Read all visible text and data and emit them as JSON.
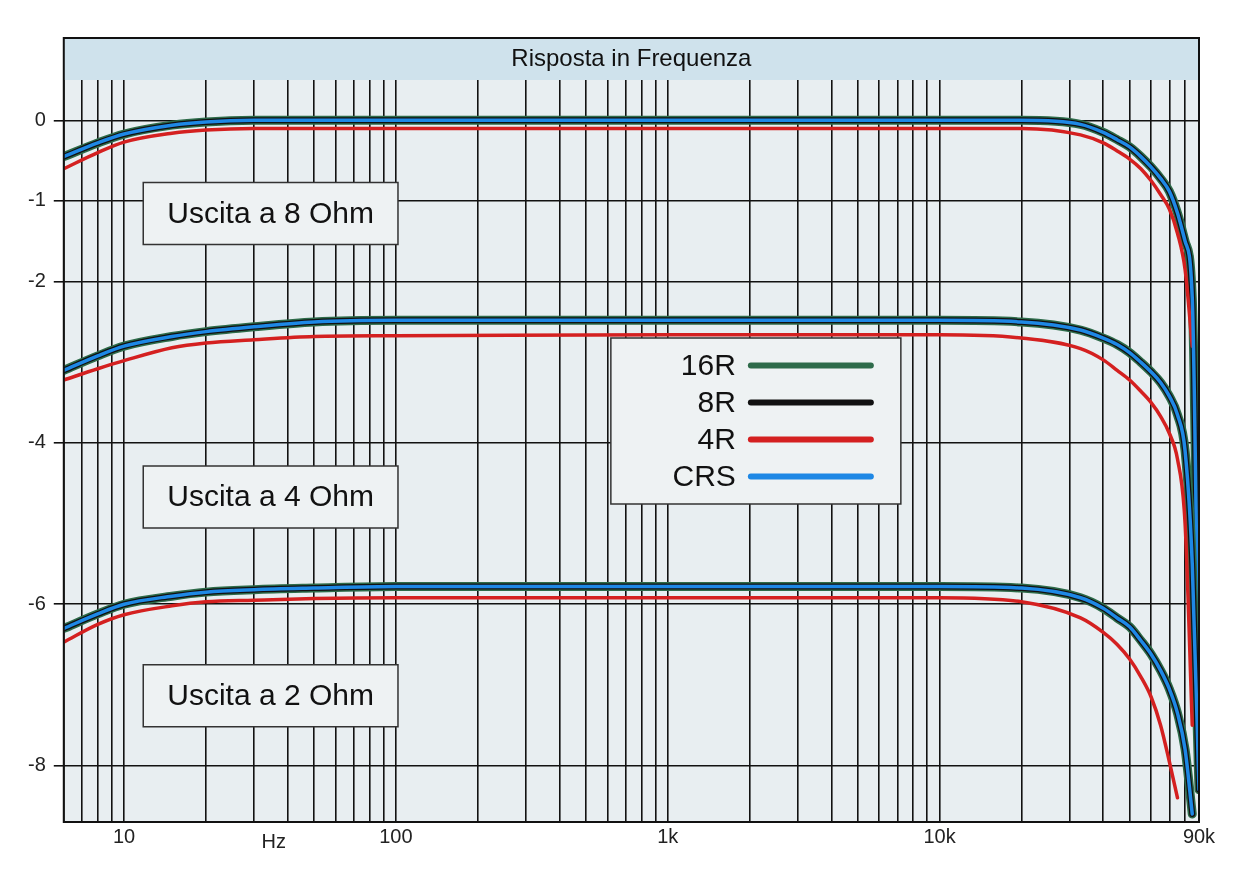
{
  "chart_data": {
    "type": "line",
    "title": "Risposta in Frequenza",
    "xlabel": "Hz",
    "log": "x",
    "grid": true,
    "legend": "right",
    "marker": "none",
    "line_style": "solid",
    "xlim": [
      6,
      90000
    ],
    "ylim": [
      -8.7,
      0.5
    ],
    "xticks": [
      {
        "value": 6,
        "label": null
      },
      {
        "value": 7,
        "label": null
      },
      {
        "value": 8,
        "label": null
      },
      {
        "value": 9,
        "label": null
      },
      10,
      {
        "value": 20,
        "label": null
      },
      {
        "value": 30,
        "label": null
      },
      {
        "value": 40,
        "label": null
      },
      {
        "value": 50,
        "label": null
      },
      {
        "value": 60,
        "label": null
      },
      {
        "value": 70,
        "label": null
      },
      {
        "value": 80,
        "label": null
      },
      {
        "value": 90,
        "label": null
      },
      100,
      {
        "value": 200,
        "label": null
      },
      {
        "value": 300,
        "label": null
      },
      {
        "value": 400,
        "label": null
      },
      {
        "value": 500,
        "label": null
      },
      {
        "value": 600,
        "label": null
      },
      {
        "value": 700,
        "label": null
      },
      {
        "value": 800,
        "label": null
      },
      {
        "value": 900,
        "label": null
      },
      {
        "value": 1000,
        "label": "1k"
      },
      {
        "value": 2000,
        "label": null
      },
      {
        "value": 3000,
        "label": null
      },
      {
        "value": 4000,
        "label": null
      },
      {
        "value": 5000,
        "label": null
      },
      {
        "value": 6000,
        "label": null
      },
      {
        "value": 7000,
        "label": null
      },
      {
        "value": 8000,
        "label": null
      },
      {
        "value": 9000,
        "label": null
      },
      {
        "value": 10000,
        "label": "10k"
      },
      {
        "value": 20000,
        "label": null
      },
      {
        "value": 30000,
        "label": null
      },
      {
        "value": 40000,
        "label": null
      },
      {
        "value": 50000,
        "label": null
      },
      {
        "value": 60000,
        "label": null
      },
      {
        "value": 70000,
        "label": null
      },
      {
        "value": 80000,
        "label": null
      },
      {
        "value": 90000,
        "label": "90k"
      }
    ],
    "yticks": [
      0,
      -1,
      -2,
      -4,
      -6,
      -8
    ],
    "x": [
      6,
      8,
      10,
      15,
      20,
      30,
      50,
      100,
      1000,
      10000,
      20000,
      33000,
      40000,
      45000,
      50000,
      55000,
      60000,
      65000,
      70000,
      75000,
      80000,
      85000,
      90000
    ],
    "series": [
      {
        "name": "16R",
        "color": "#2e6b4a",
        "values": [
          -0.45,
          -0.28,
          -0.17,
          -0.06,
          -0.02,
          0,
          0,
          0,
          0,
          0,
          0,
          -0.05,
          -0.15,
          -0.24,
          -0.33,
          -0.45,
          -0.58,
          -0.72,
          -0.88,
          -1.15,
          -1.5,
          -2.2,
          -7.5
        ]
      },
      {
        "name": "8R",
        "color": "#111111",
        "values": [
          -0.45,
          -0.28,
          -0.17,
          -0.06,
          -0.02,
          0,
          0,
          0,
          0,
          0,
          0,
          -0.05,
          -0.15,
          -0.24,
          -0.33,
          -0.45,
          -0.58,
          -0.72,
          -0.88,
          -1.15,
          -1.5,
          -2.2,
          -7.5
        ]
      },
      {
        "name": "4R",
        "color": "#d42020",
        "values": [
          -0.6,
          -0.4,
          -0.27,
          -0.16,
          -0.12,
          -0.1,
          -0.1,
          -0.1,
          -0.1,
          -0.1,
          -0.1,
          -0.18,
          -0.28,
          -0.38,
          -0.48,
          -0.6,
          -0.75,
          -0.92,
          -1.1,
          -1.4,
          -1.85,
          -2.8,
          null
        ]
      },
      {
        "name": "CRS",
        "color": "#1e88e5",
        "values": [
          -0.45,
          -0.28,
          -0.17,
          -0.06,
          -0.02,
          0,
          0,
          0,
          0,
          0,
          0,
          -0.05,
          -0.15,
          -0.24,
          -0.33,
          -0.45,
          -0.58,
          -0.72,
          -0.88,
          -1.15,
          -1.5,
          -2.2,
          -7.5
        ]
      },
      {
        "color": "#2e6b4a",
        "values": [
          -3.1,
          -2.92,
          -2.8,
          -2.68,
          -2.62,
          -2.56,
          -2.5,
          -2.48,
          -2.48,
          -2.48,
          -2.5,
          -2.6,
          -2.7,
          -2.78,
          -2.88,
          -3,
          -3.12,
          -3.25,
          -3.42,
          -3.65,
          -4.1,
          -5.5,
          -8.3
        ]
      },
      {
        "color": "#111111",
        "values": [
          -3.1,
          -2.92,
          -2.8,
          -2.68,
          -2.62,
          -2.56,
          -2.5,
          -2.48,
          -2.48,
          -2.48,
          -2.5,
          -2.6,
          -2.7,
          -2.78,
          -2.88,
          -3,
          -3.12,
          -3.25,
          -3.42,
          -3.65,
          -4.1,
          -5.5,
          -8.3
        ]
      },
      {
        "color": "#d42020",
        "values": [
          -3.22,
          -3.08,
          -2.98,
          -2.82,
          -2.76,
          -2.72,
          -2.68,
          -2.67,
          -2.66,
          -2.66,
          -2.7,
          -2.83,
          -2.97,
          -3.1,
          -3.22,
          -3.36,
          -3.5,
          -3.67,
          -3.88,
          -4.2,
          -5,
          -7.5,
          null
        ]
      },
      {
        "color": "#1e88e5",
        "values": [
          -3.1,
          -2.92,
          -2.8,
          -2.68,
          -2.62,
          -2.56,
          -2.5,
          -2.48,
          -2.48,
          -2.48,
          -2.5,
          -2.6,
          -2.7,
          -2.78,
          -2.88,
          -3,
          -3.12,
          -3.25,
          -3.42,
          -3.65,
          -4.1,
          -5.5,
          -8.3
        ]
      },
      {
        "color": "#2e6b4a",
        "values": [
          -6.3,
          -6.12,
          -6,
          -5.9,
          -5.85,
          -5.82,
          -5.8,
          -5.78,
          -5.78,
          -5.78,
          -5.8,
          -5.92,
          -6.05,
          -6.17,
          -6.28,
          -6.45,
          -6.62,
          -6.82,
          -7.05,
          -7.35,
          -7.8,
          -8.6,
          null
        ]
      },
      {
        "color": "#111111",
        "values": [
          -6.3,
          -6.12,
          -6,
          -5.9,
          -5.85,
          -5.82,
          -5.8,
          -5.78,
          -5.78,
          -5.78,
          -5.8,
          -5.92,
          -6.05,
          -6.17,
          -6.28,
          -6.45,
          -6.62,
          -6.82,
          -7.05,
          -7.35,
          -7.8,
          -8.6,
          null
        ]
      },
      {
        "color": "#d42020",
        "values": [
          -6.47,
          -6.25,
          -6.13,
          -6.02,
          -5.97,
          -5.95,
          -5.93,
          -5.92,
          -5.92,
          -5.92,
          -5.97,
          -6.17,
          -6.35,
          -6.5,
          -6.68,
          -6.9,
          -7.15,
          -7.5,
          -7.95,
          -8.4,
          null,
          null,
          null
        ]
      },
      {
        "color": "#1e88e5",
        "values": [
          -6.3,
          -6.12,
          -6,
          -5.9,
          -5.85,
          -5.82,
          -5.8,
          -5.78,
          -5.78,
          -5.78,
          -5.8,
          -5.92,
          -6.05,
          -6.17,
          -6.28,
          -6.45,
          -6.62,
          -6.82,
          -7.05,
          -7.35,
          -7.8,
          -8.6,
          null
        ]
      }
    ],
    "annotations": [
      "Uscita a 8 Ohm",
      "Uscita a 4 Ohm",
      "Uscita a 2 Ohm"
    ]
  }
}
